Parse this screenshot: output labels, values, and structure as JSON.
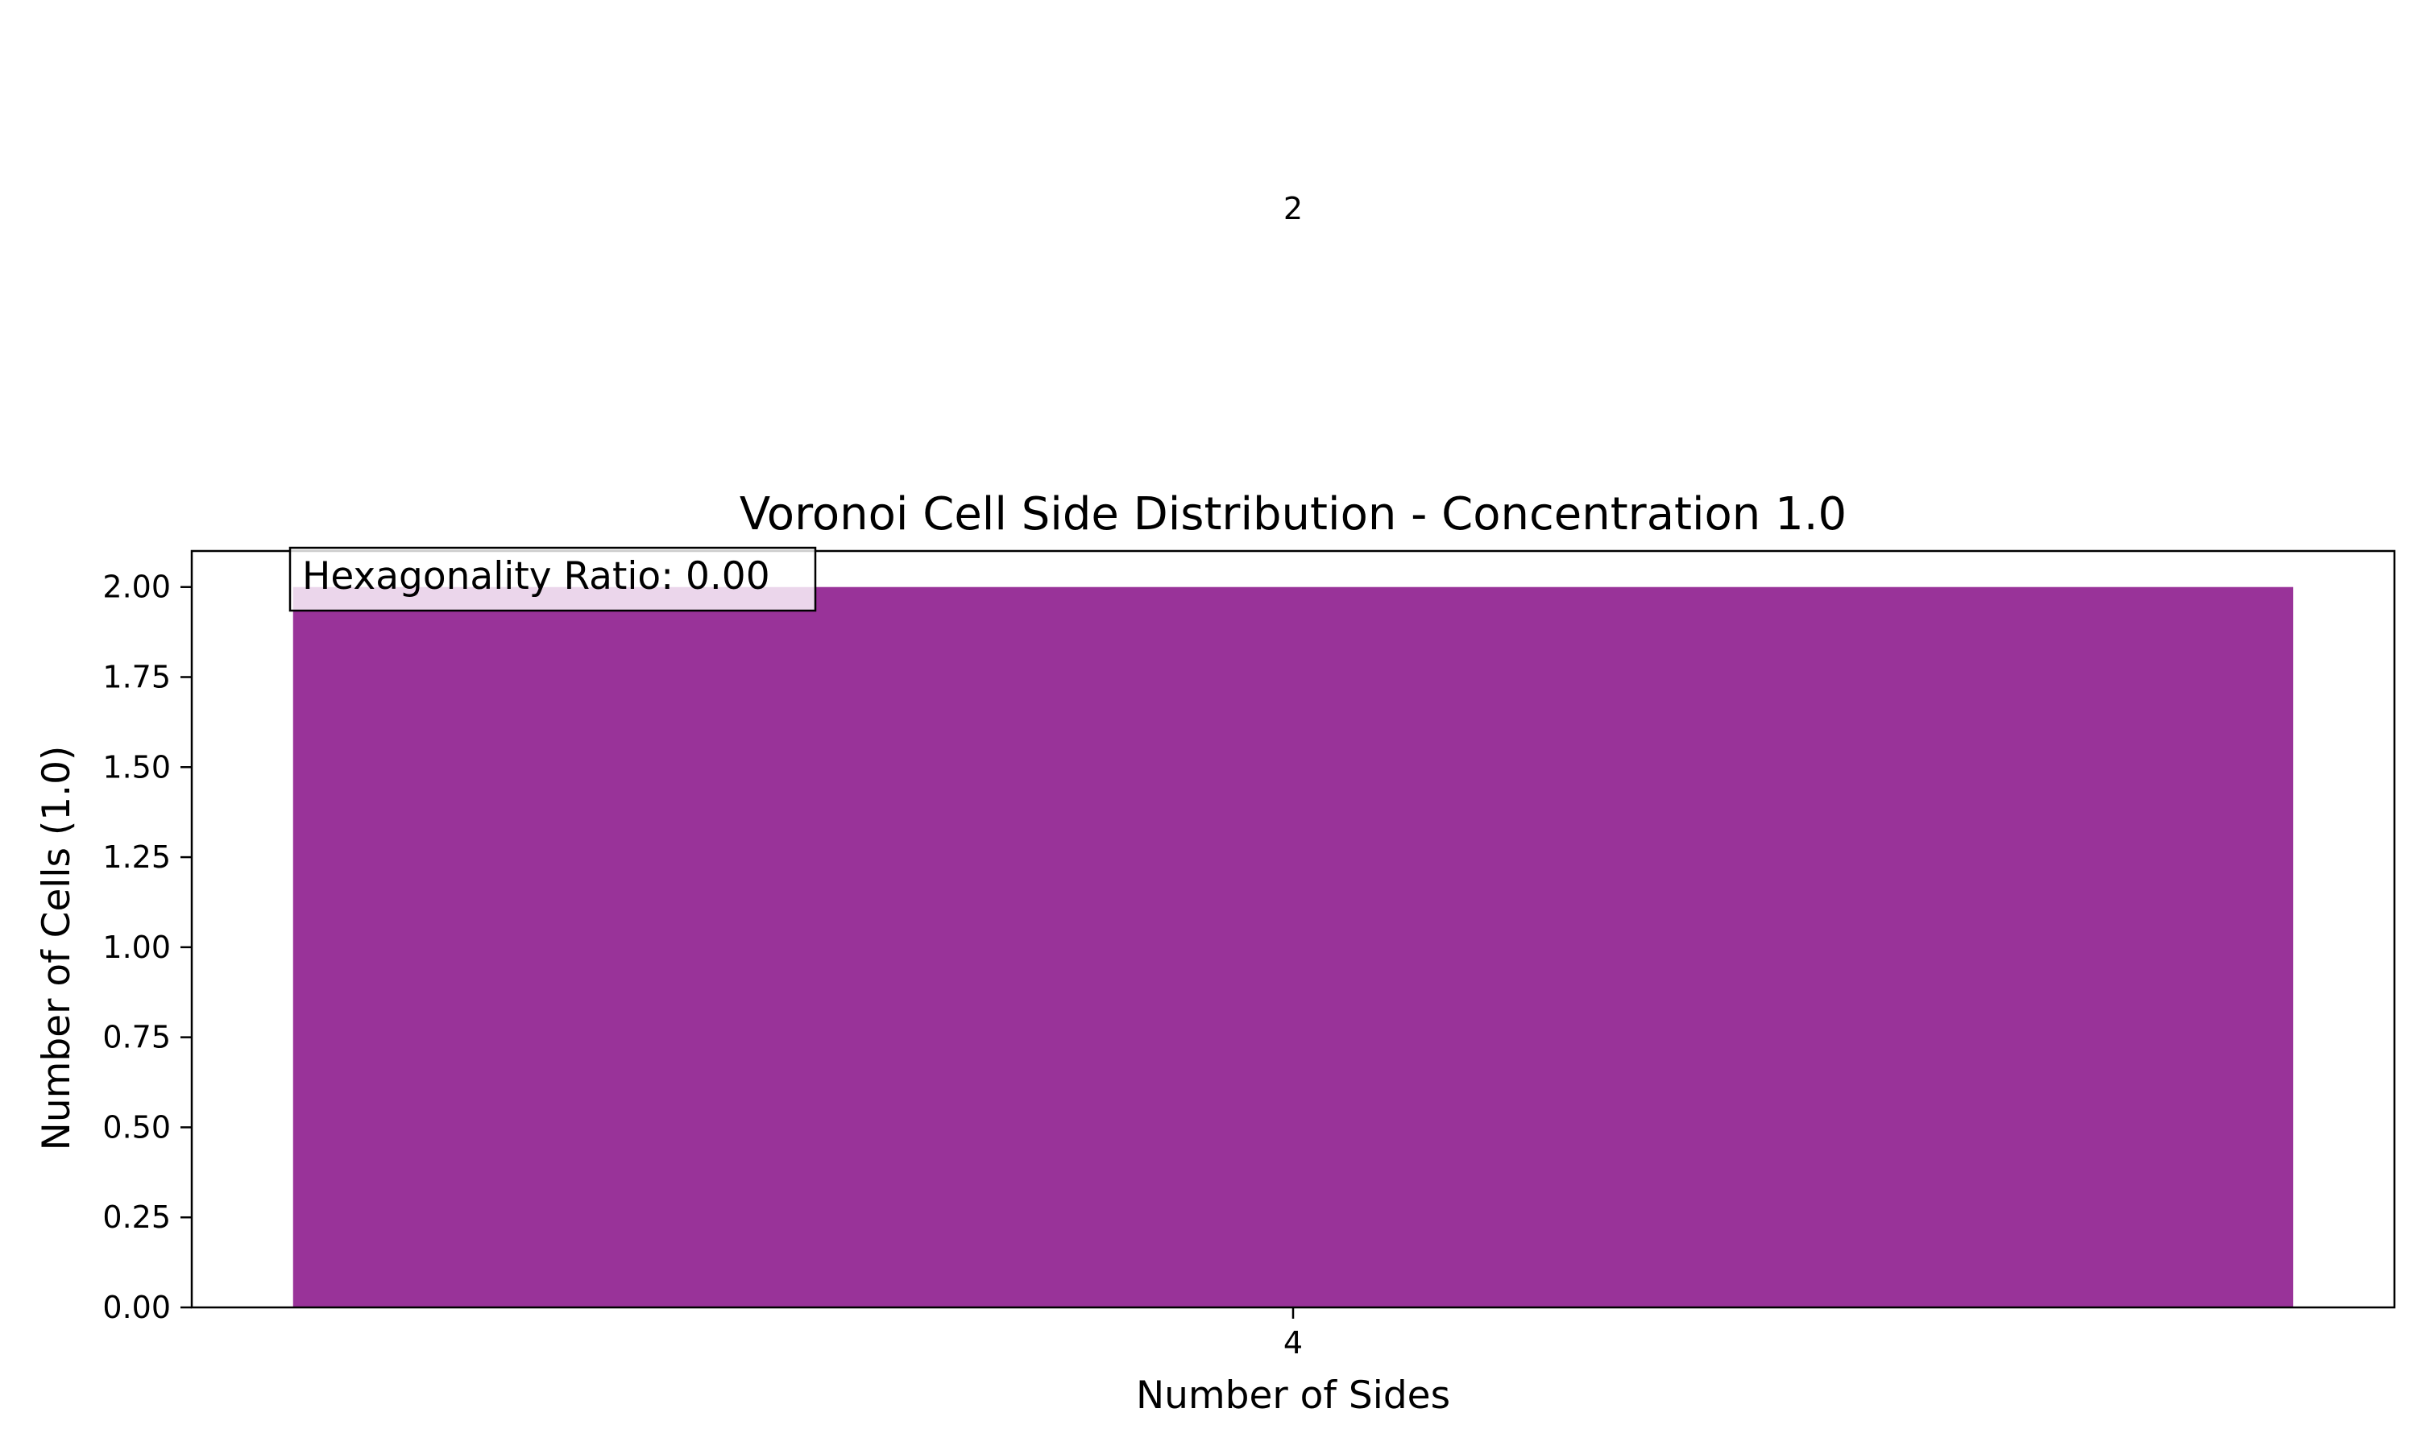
{
  "chart_data": {
    "type": "bar",
    "title": "Voronoi Cell Side Distribution - Concentration 1.0",
    "xlabel": "Number of Sides",
    "ylabel": "Number of Cells (1.0)",
    "categories": [
      "4"
    ],
    "values": [
      2
    ],
    "data_labels": [
      "2"
    ],
    "ylim": [
      0,
      2.1
    ],
    "yticks": [
      "0.00",
      "0.25",
      "0.50",
      "0.75",
      "1.00",
      "1.25",
      "1.50",
      "1.75",
      "2.00"
    ],
    "ytick_values": [
      0,
      0.25,
      0.5,
      0.75,
      1.0,
      1.25,
      1.5,
      1.75,
      2.0
    ],
    "grid": false,
    "bar_color": "#993399",
    "annotation": "Hexagonality Ratio: 0.00"
  }
}
